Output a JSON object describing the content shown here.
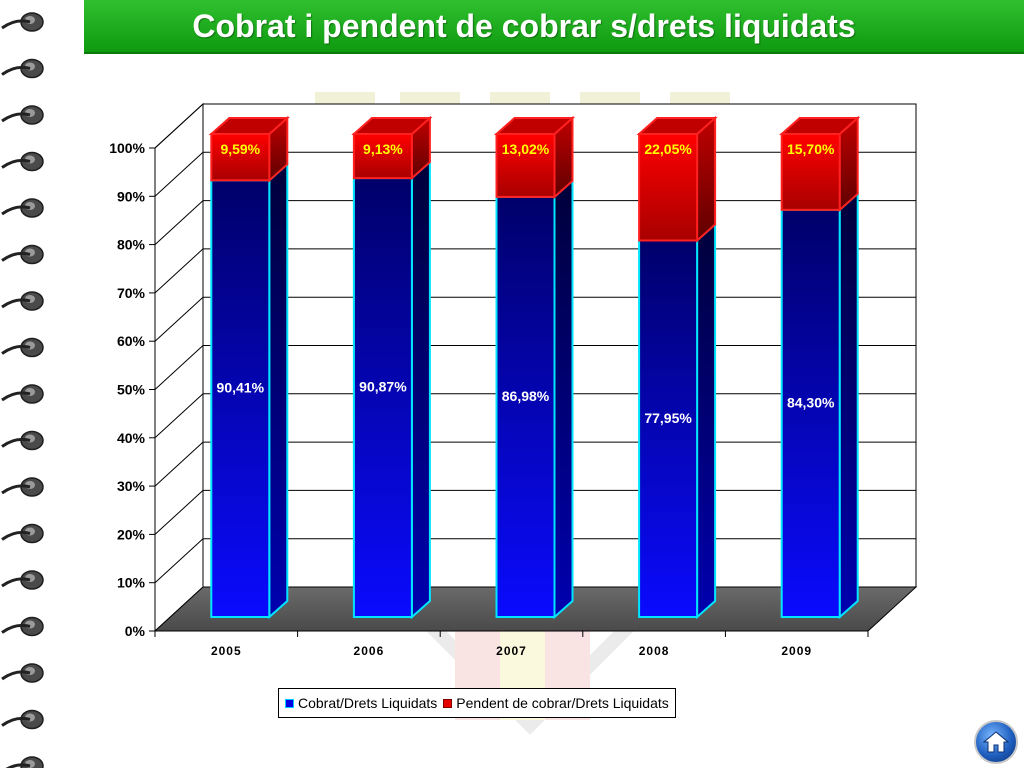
{
  "header": {
    "title": "Cobrat i pendent de cobrar s/drets liquidats"
  },
  "chart_data": {
    "type": "bar",
    "stacked": true,
    "percent": true,
    "categories": [
      "2005",
      "2006",
      "2007",
      "2008",
      "2009"
    ],
    "series": [
      {
        "name": "Cobrat/Drets Liquidats",
        "values": [
          90.41,
          90.87,
          86.98,
          77.95,
          84.3
        ],
        "labels": [
          "90,41%",
          "90,87%",
          "86,98%",
          "77,95%",
          "84,30%"
        ],
        "color": "#0000e6"
      },
      {
        "name": "Pendent de cobrar/Drets Liquidats",
        "values": [
          9.59,
          9.13,
          13.02,
          22.05,
          15.7
        ],
        "labels": [
          "9,59%",
          "9,13%",
          "13,02%",
          "22,05%",
          "15,70%"
        ],
        "color": "#e60000"
      }
    ],
    "yticks": [
      "0%",
      "10%",
      "20%",
      "30%",
      "40%",
      "50%",
      "60%",
      "70%",
      "80%",
      "90%",
      "100%"
    ],
    "ylim": [
      0,
      100
    ],
    "grid": true,
    "legend_position": "bottom"
  },
  "icons": {
    "home": "home-icon",
    "spiral": "spiral-binding-icon"
  }
}
